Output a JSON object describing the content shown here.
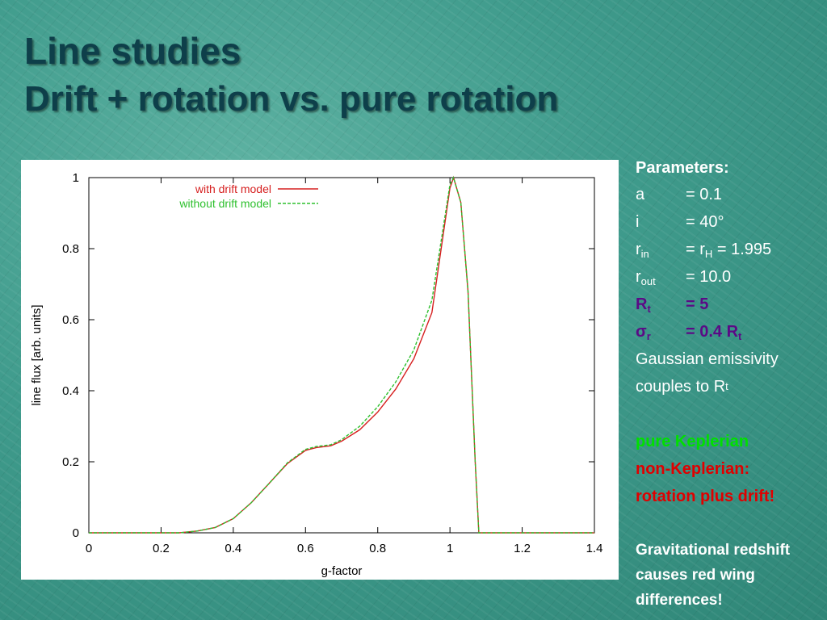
{
  "slide": {
    "title": "Line studies",
    "subtitle": "Drift + rotation vs. pure rotation"
  },
  "chart_data": {
    "type": "line",
    "xlabel": "g-factor",
    "ylabel": "line flux [arb. units]",
    "xlim": [
      0,
      1.4
    ],
    "ylim": [
      0,
      1
    ],
    "xticks": [
      "0",
      "0.2",
      "0.4",
      "0.6",
      "0.8",
      "1",
      "1.2",
      "1.4"
    ],
    "yticks": [
      "0",
      "0.2",
      "0.4",
      "0.6",
      "0.8",
      "1"
    ],
    "xtick_values": [
      0,
      0.2,
      0.4,
      0.6,
      0.8,
      1.0,
      1.2,
      1.4
    ],
    "ytick_values": [
      0,
      0.2,
      0.4,
      0.6,
      0.8,
      1.0
    ],
    "legend_position": "top-left",
    "series": [
      {
        "name": "with drift model",
        "color": "#d62020",
        "style": "solid",
        "x": [
          0.0,
          0.25,
          0.3,
          0.35,
          0.4,
          0.45,
          0.5,
          0.55,
          0.6,
          0.63,
          0.67,
          0.7,
          0.75,
          0.8,
          0.85,
          0.9,
          0.95,
          1.0,
          1.01,
          1.03,
          1.05,
          1.07,
          1.08,
          1.4
        ],
        "values": [
          0.0,
          0.0,
          0.005,
          0.015,
          0.04,
          0.085,
          0.14,
          0.195,
          0.232,
          0.24,
          0.245,
          0.258,
          0.29,
          0.34,
          0.405,
          0.49,
          0.62,
          0.97,
          1.0,
          0.93,
          0.68,
          0.2,
          0.0,
          0.0
        ]
      },
      {
        "name": "without drift model",
        "color": "#2ec02e",
        "style": "dashed",
        "x": [
          0.0,
          0.25,
          0.3,
          0.35,
          0.4,
          0.45,
          0.5,
          0.55,
          0.6,
          0.63,
          0.67,
          0.7,
          0.75,
          0.8,
          0.85,
          0.9,
          0.95,
          1.0,
          1.01,
          1.03,
          1.05,
          1.07,
          1.08,
          1.4
        ],
        "values": [
          0.0,
          0.0,
          0.005,
          0.015,
          0.04,
          0.085,
          0.14,
          0.197,
          0.235,
          0.243,
          0.248,
          0.262,
          0.3,
          0.355,
          0.425,
          0.515,
          0.655,
          0.98,
          1.0,
          0.93,
          0.68,
          0.2,
          0.0,
          0.0
        ]
      }
    ]
  },
  "params": {
    "header": "Parameters:",
    "a_key": "a",
    "a_val": "= 0.1",
    "i_key": "i",
    "i_val": "= 40°",
    "rin_key": "r",
    "rin_sub": "in",
    "rin_eq": "= r",
    "rin_eq_sub": "H",
    "rin_val": " = 1.995",
    "rout_key": "r",
    "rout_sub": "out",
    "rout_val": "= 10.0",
    "Rt_key": "R",
    "Rt_sub": "t",
    "Rt_val": "= 5",
    "sigma_key": "σ",
    "sigma_sub": "r",
    "sigma_val": "= 0.4 R",
    "sigma_val_sub": "t",
    "gauss_line1": "Gaussian emissivity",
    "gauss_line2": "couples to R",
    "gauss_line2_sub": "t"
  },
  "notes": {
    "kepler": "pure Keplerian",
    "nonkepler1": "non-Keplerian:",
    "nonkepler2": "rotation plus drift!",
    "grav1": "Gravitational redshift",
    "grav2": "causes red wing",
    "grav3": "differences!"
  },
  "colors": {
    "title": "#0e3f4a",
    "purple": "#5b0a86",
    "green_text": "#00e000",
    "red_text": "#e00000"
  }
}
